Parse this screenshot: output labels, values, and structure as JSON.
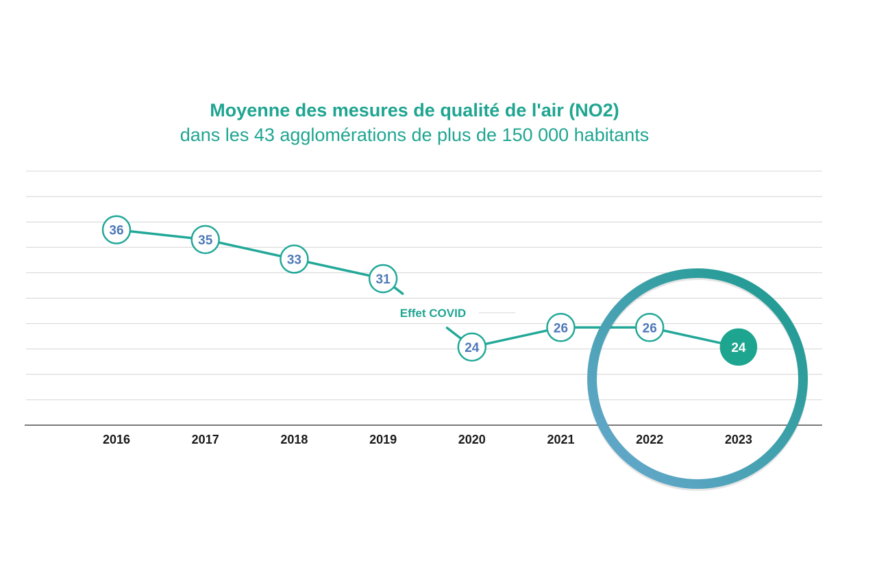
{
  "chart_data": {
    "type": "line",
    "title": "Moyenne des mesures de qualité de l'air (NO2)",
    "subtitle": "dans les 43 agglomérations de plus de 150 000 habitants",
    "categories": [
      "2016",
      "2017",
      "2018",
      "2019",
      "2020",
      "2021",
      "2022",
      "2023"
    ],
    "series": [
      {
        "values": [
          36,
          35,
          33,
          31,
          24,
          26,
          26,
          24
        ]
      }
    ],
    "data_labels": [
      "36",
      "35",
      "33",
      "31",
      "24",
      "26",
      "26",
      "24"
    ],
    "annotation": "Effet COVID",
    "highlighted_category": "2023",
    "xlabel": "",
    "ylabel": "",
    "ylim": [
      16,
      42
    ],
    "grid": true,
    "legend": "none"
  },
  "colors": {
    "line": "#22a898",
    "title": "#1fa591",
    "marker_label": "#4e79b8",
    "highlight_fill": "#1ea58f",
    "grid": "#d4d4d4",
    "axis": "#7a7a7a",
    "circle_ring_start": "#6aa8d0",
    "circle_ring_end": "#1a9a8c"
  }
}
